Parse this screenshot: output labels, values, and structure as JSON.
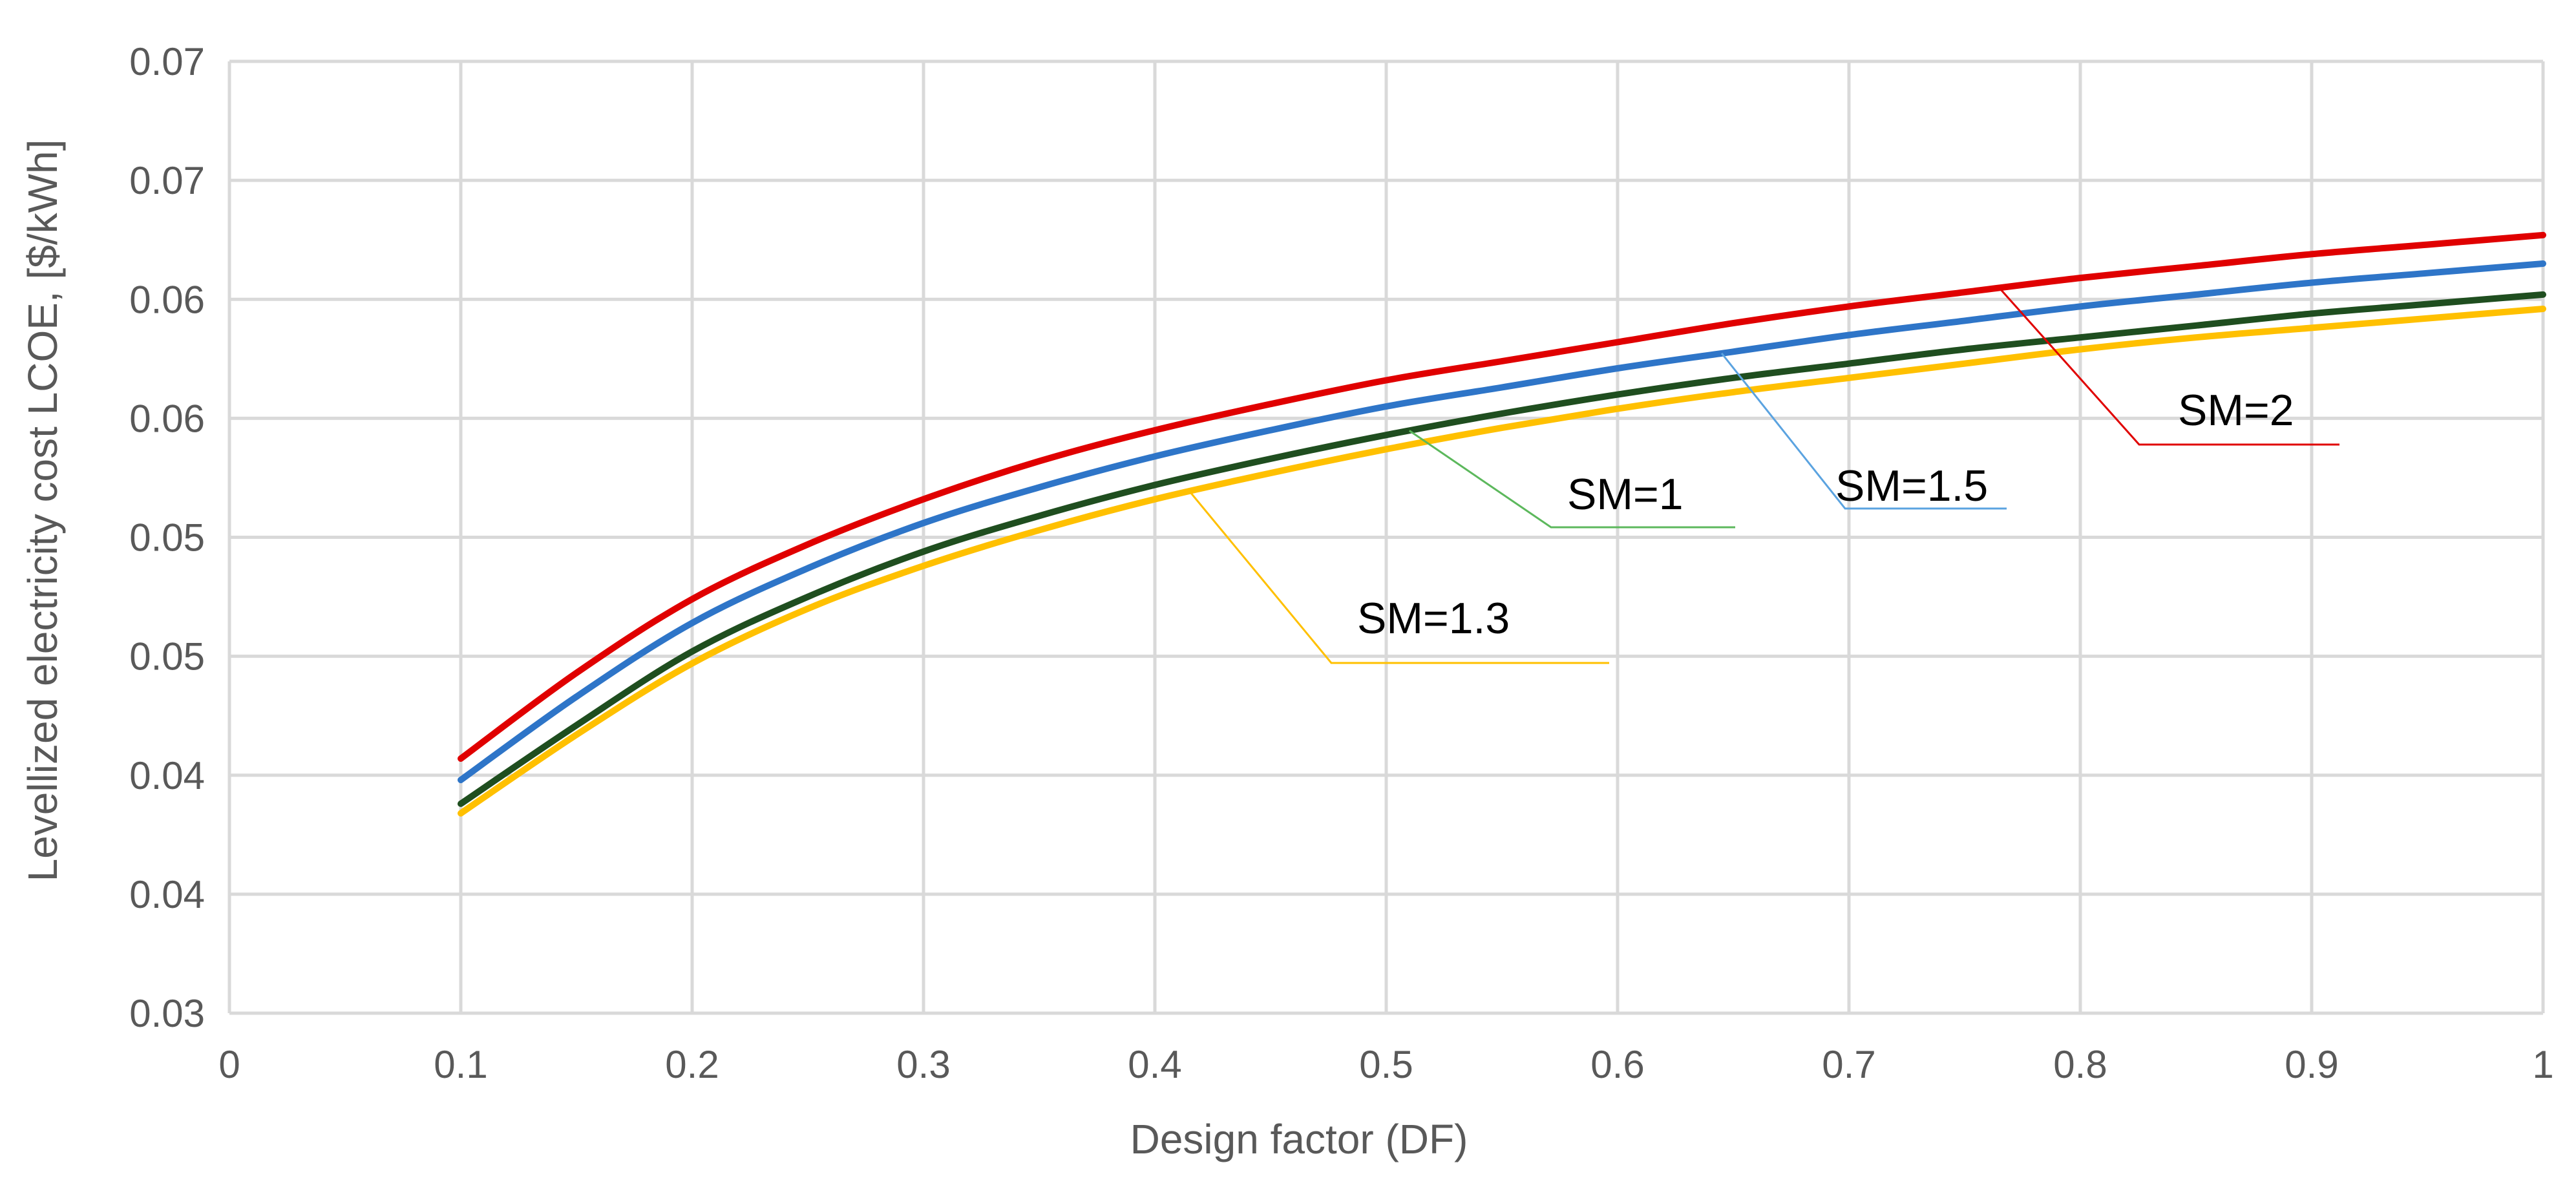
{
  "chart_data": {
    "type": "line",
    "title": "",
    "xlabel": "Design factor (DF)",
    "ylabel": "Levellized electricity cost LCOE, [$/kWh]",
    "xlim": [
      0,
      1
    ],
    "ylim": [
      0.03,
      0.07
    ],
    "grid": true,
    "x_ticks": [
      0,
      0.1,
      0.2,
      0.3,
      0.4,
      0.5,
      0.6,
      0.7,
      0.8,
      0.9,
      1
    ],
    "x_tick_labels": [
      "0",
      "0.1",
      "0.2",
      "0.3",
      "0.4",
      "0.5",
      "0.6",
      "0.7",
      "0.8",
      "0.9",
      "1"
    ],
    "y_ticks": [
      0.03,
      0.035,
      0.04,
      0.045,
      0.05,
      0.055,
      0.06,
      0.065,
      0.07
    ],
    "y_tick_labels": [
      "0.03",
      "0.04",
      "0.04",
      "0.05",
      "0.05",
      "0.06",
      "0.06",
      "0.07",
      "0.07"
    ],
    "x": [
      0.1,
      0.15,
      0.2,
      0.25,
      0.3,
      0.35,
      0.4,
      0.45,
      0.5,
      0.55,
      0.6,
      0.65,
      0.7,
      0.75,
      0.8,
      0.85,
      0.9,
      0.95,
      1.0
    ],
    "series": [
      {
        "name": "SM=2",
        "color": "#e00000",
        "values": [
          0.0407,
          0.0443,
          0.0474,
          0.0497,
          0.0516,
          0.0532,
          0.0545,
          0.0556,
          0.0566,
          0.0574,
          0.0582,
          0.059,
          0.0597,
          0.0603,
          0.0609,
          0.0614,
          0.0619,
          0.0623,
          0.0627
        ]
      },
      {
        "name": "SM=1.5",
        "color": "#2e75c8",
        "values": [
          0.0398,
          0.0433,
          0.0464,
          0.0487,
          0.0506,
          0.0521,
          0.0534,
          0.0545,
          0.0555,
          0.0563,
          0.0571,
          0.0578,
          0.0585,
          0.0591,
          0.0597,
          0.0602,
          0.0607,
          0.0611,
          0.0615
        ]
      },
      {
        "name": "SM=1",
        "color": "#1f4e1f",
        "values": [
          0.0388,
          0.0421,
          0.0452,
          0.0475,
          0.0494,
          0.0509,
          0.0522,
          0.0533,
          0.0543,
          0.0552,
          0.056,
          0.0567,
          0.0573,
          0.0579,
          0.0584,
          0.0589,
          0.0594,
          0.0598,
          0.0602
        ]
      },
      {
        "name": "SM=1.3",
        "color": "#ffc000",
        "values": [
          0.0384,
          0.0417,
          0.0447,
          0.047,
          0.0488,
          0.0503,
          0.0516,
          0.0527,
          0.0537,
          0.0546,
          0.0554,
          0.0561,
          0.0567,
          0.0573,
          0.0579,
          0.0584,
          0.0588,
          0.0592,
          0.0596
        ]
      }
    ],
    "annotations": [
      {
        "text": "SM=2",
        "series": "SM=2",
        "anchor_x": 0.765,
        "color": "#e00000"
      },
      {
        "text": "SM=1.5",
        "series": "SM=1.5",
        "anchor_x": 0.645,
        "color": "#5ba3e0"
      },
      {
        "text": "SM=1",
        "series": "SM=1",
        "anchor_x": 0.51,
        "color": "#5cb85c"
      },
      {
        "text": "SM=1.3",
        "series": "SM=1.3",
        "anchor_x": 0.415,
        "color": "#ffc000"
      }
    ]
  }
}
